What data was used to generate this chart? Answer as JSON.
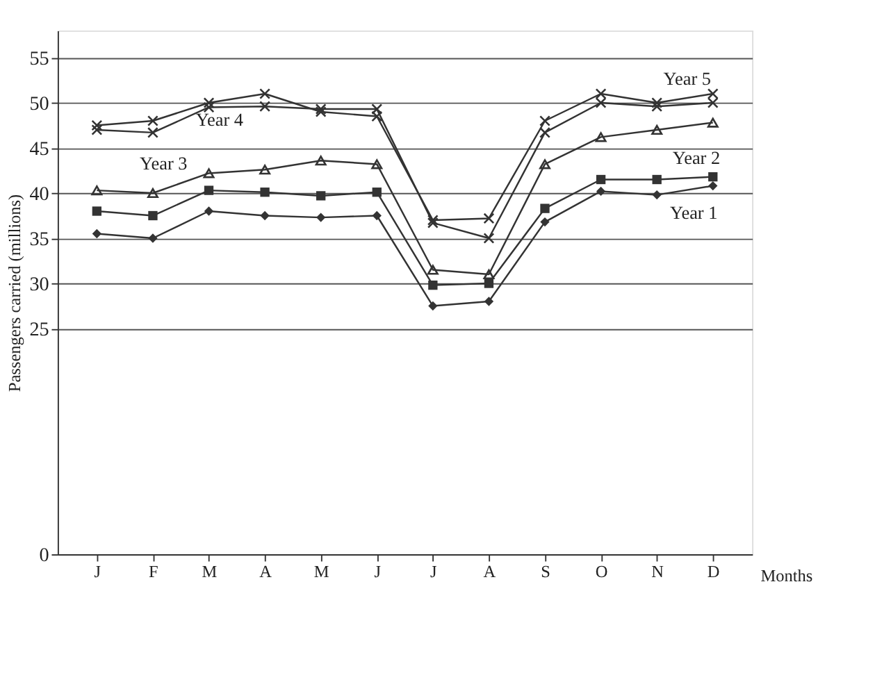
{
  "chart_data": {
    "type": "line",
    "xlabel": "Months",
    "ylabel": "Passengers carried (millions)",
    "categories": [
      "J",
      "F",
      "M",
      "A",
      "M",
      "J",
      "J",
      "A",
      "S",
      "O",
      "N",
      "D"
    ],
    "ylim": [
      0,
      58
    ],
    "yticks": [
      0,
      25,
      30,
      35,
      40,
      45,
      50,
      55
    ],
    "grid": "y",
    "legend": false,
    "series": [
      {
        "name": "Year 1",
        "color": "#333333",
        "marker": "diamond",
        "values": [
          35.5,
          35,
          38,
          37.5,
          37.3,
          37.5,
          27.5,
          28,
          36.8,
          40.2,
          39.8,
          40.8
        ]
      },
      {
        "name": "Year 2",
        "color": "#333333",
        "marker": "square",
        "values": [
          38,
          37.5,
          40.3,
          40.1,
          39.7,
          40.1,
          29.8,
          30,
          38.3,
          41.5,
          41.5,
          41.8
        ]
      },
      {
        "name": "Year 3",
        "color": "#333333",
        "marker": "triangle",
        "values": [
          40.3,
          40,
          42.2,
          42.6,
          43.6,
          43.2,
          31.5,
          31,
          43.2,
          46.2,
          47,
          47.8
        ]
      },
      {
        "name": "Year 4",
        "color": "#333333",
        "marker": "cross",
        "values": [
          47,
          46.7,
          49.5,
          49.6,
          49.3,
          49.3,
          36.7,
          35,
          46.7,
          50,
          49.6,
          50
        ]
      },
      {
        "name": "Year 5",
        "color": "#333333",
        "marker": "cross",
        "values": [
          47.5,
          48,
          50,
          51,
          49,
          48.5,
          37,
          37.2,
          48,
          51,
          50,
          51
        ]
      }
    ]
  }
}
